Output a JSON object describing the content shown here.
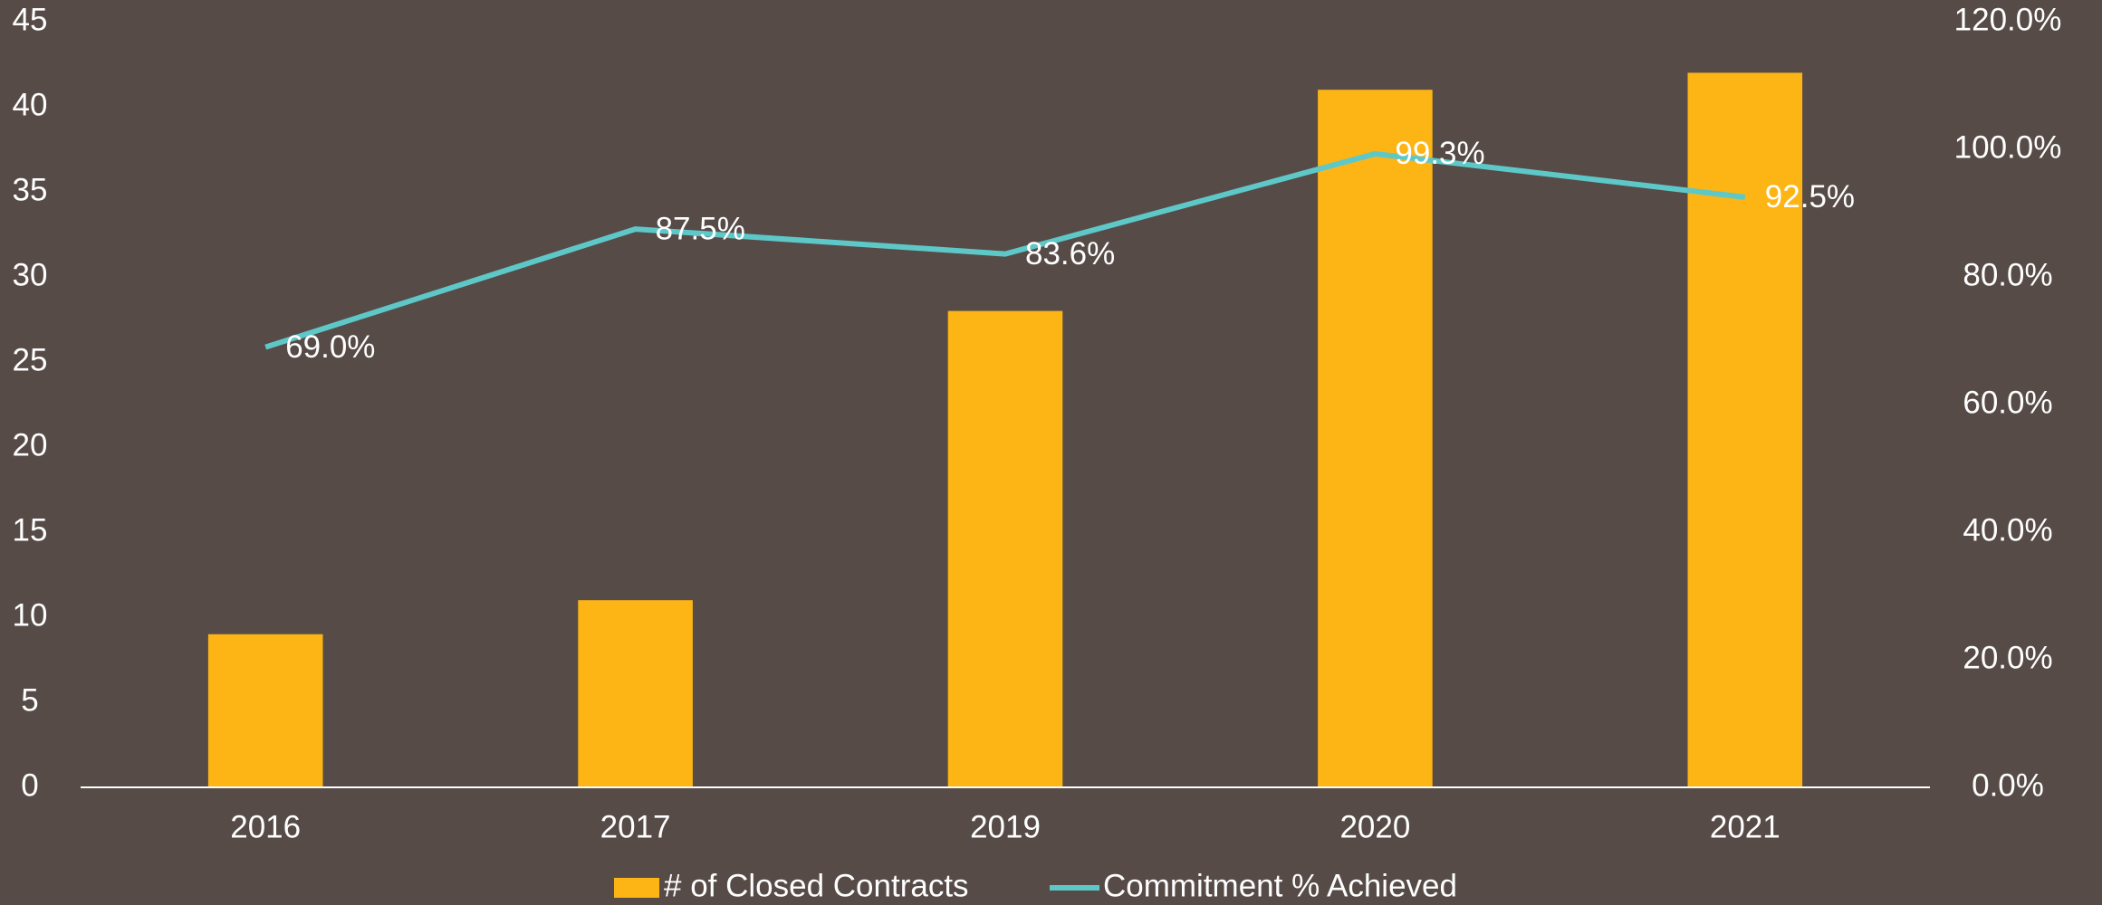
{
  "chart_data": {
    "type": "combo",
    "categories": [
      "2016",
      "2017",
      "2019",
      "2020",
      "2021"
    ],
    "series": [
      {
        "name": "# of Closed Contracts",
        "type": "bar",
        "color": "#fdb515",
        "values": [
          9,
          11,
          28,
          41,
          42
        ]
      },
      {
        "name": "Commitment % Achieved",
        "type": "line",
        "axis": "y2",
        "color": "#5ec8c8",
        "values": [
          69.0,
          87.5,
          83.6,
          99.3,
          92.5
        ],
        "value_labels": [
          "69.0%",
          "87.5%",
          "83.6%",
          "99.3%",
          "92.5%"
        ]
      }
    ],
    "ylim": [
      0,
      45
    ],
    "yticks": [
      0,
      5,
      10,
      15,
      20,
      25,
      30,
      35,
      40,
      45
    ],
    "y2lim": [
      0,
      120
    ],
    "y2ticks": [
      {
        "value": 0,
        "label": "0.0%"
      },
      {
        "value": 20,
        "label": "20.0%"
      },
      {
        "value": 40,
        "label": "40.0%"
      },
      {
        "value": 60,
        "label": "60.0%"
      },
      {
        "value": 80,
        "label": "80.0%"
      },
      {
        "value": 100,
        "label": "100.0%"
      },
      {
        "value": 120,
        "label": "120.0%"
      }
    ],
    "grid": false,
    "legend": "bottom"
  }
}
